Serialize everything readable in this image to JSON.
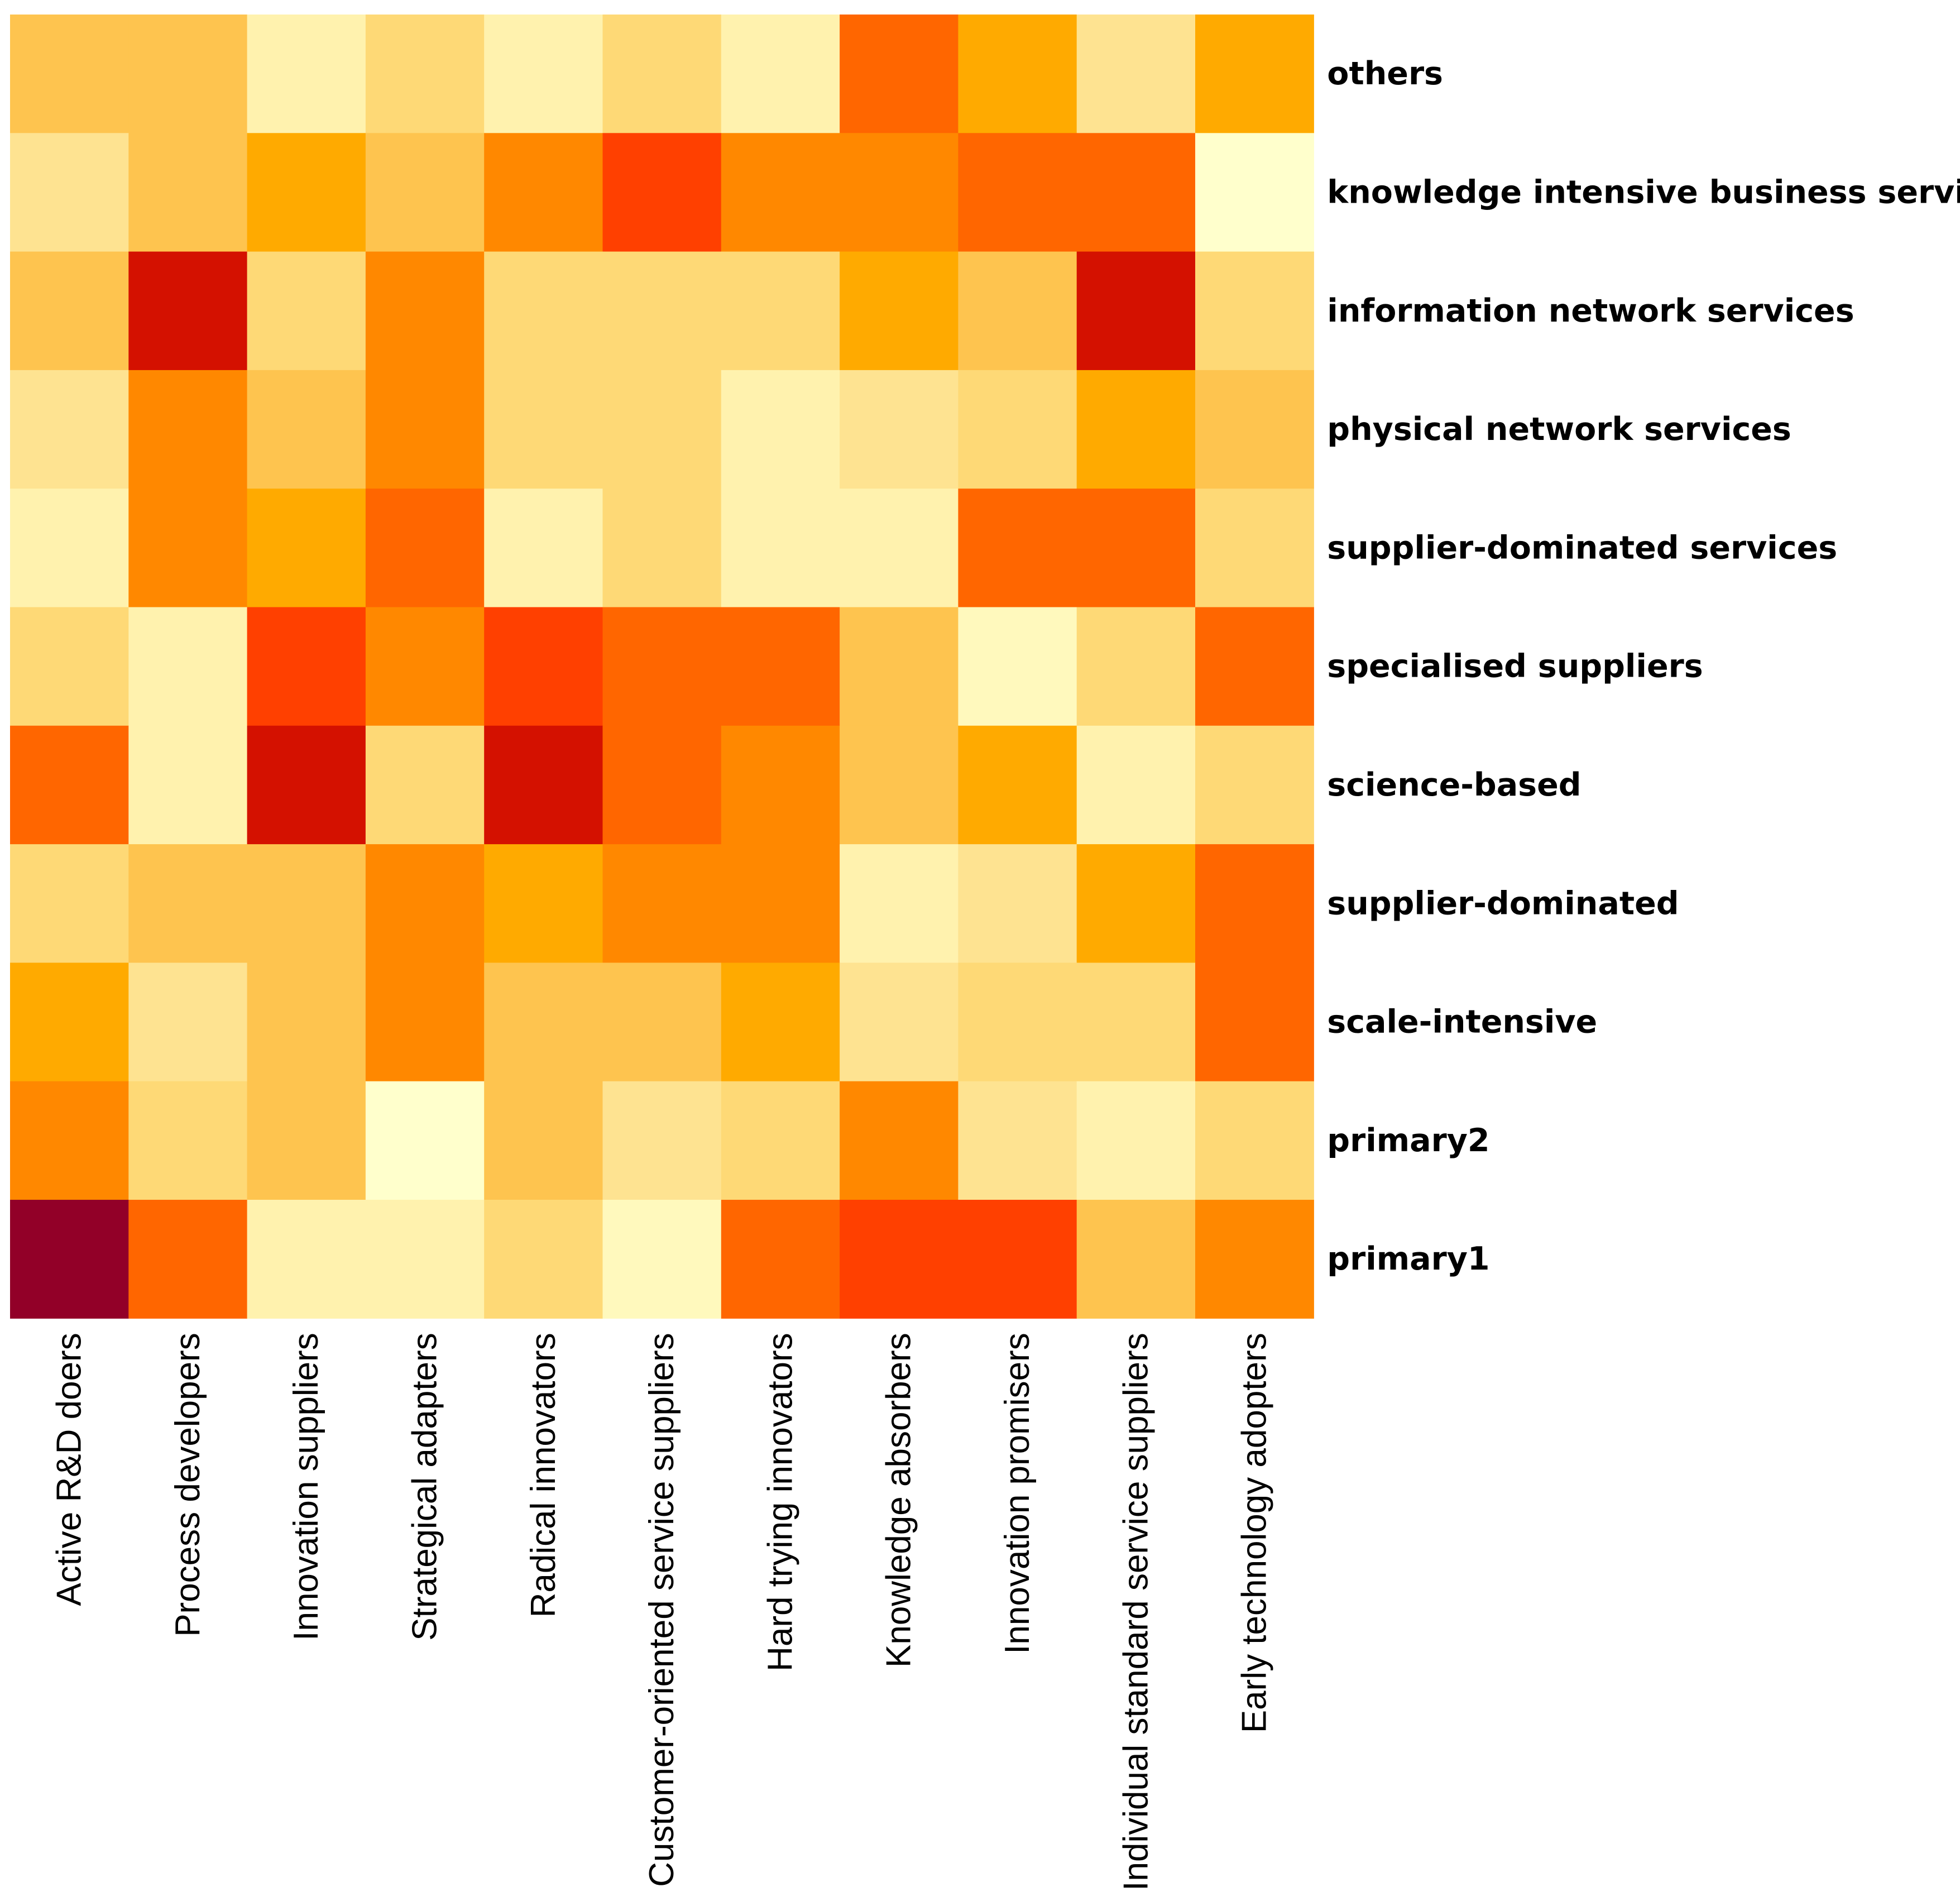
{
  "chart_data": {
    "type": "heatmap",
    "title": "",
    "xlabel": "",
    "ylabel": "",
    "legend": "none",
    "colormap": "heat (light yellow = low, dark red = high)",
    "columns": [
      "Active R&D doers",
      "Process developers",
      "Innovation suppliers",
      "Strategical adapters",
      "Radical innovators",
      "Customer-oriented service suppliers",
      "Hard trying innovators",
      "Knowledge absorbers",
      "Innovation promisers",
      "Individual standard service suppliers",
      "Early technology adopters"
    ],
    "rows": [
      "others",
      "knowledge intensive business services",
      "information network services",
      "physical network services",
      "supplier-dominated services",
      "specialised suppliers",
      "science-based",
      "supplier-dominated",
      "scale-intensive",
      "primary2",
      "primary1"
    ],
    "values": [
      [
        4,
        4,
        1,
        3,
        1,
        3,
        1,
        7,
        5,
        2,
        5
      ],
      [
        2,
        4,
        5,
        4,
        6,
        8,
        6,
        6,
        7,
        7,
        0
      ],
      [
        4,
        9,
        3,
        6,
        3,
        3,
        3,
        5,
        4,
        9,
        3
      ],
      [
        2,
        6,
        4,
        6,
        3,
        3,
        1,
        2,
        3,
        5,
        4
      ],
      [
        1,
        6,
        5,
        7,
        1,
        3,
        1,
        1,
        7,
        7,
        3
      ],
      [
        3,
        1,
        8,
        6,
        8,
        7,
        7,
        4,
        0.5,
        3,
        7
      ],
      [
        7,
        1,
        9,
        3,
        9,
        7,
        6,
        4,
        5,
        1,
        3
      ],
      [
        3,
        4,
        4,
        6,
        5,
        6,
        6,
        1,
        2,
        5,
        7
      ],
      [
        5,
        2,
        4,
        6,
        4,
        4,
        5,
        2,
        3,
        3,
        7
      ],
      [
        6,
        3,
        4,
        0,
        4,
        2,
        3,
        6,
        2,
        1,
        3
      ],
      [
        10,
        7,
        1,
        1,
        3,
        0.5,
        7,
        8,
        8,
        4,
        6
      ]
    ],
    "value_range": [
      0,
      10
    ]
  }
}
